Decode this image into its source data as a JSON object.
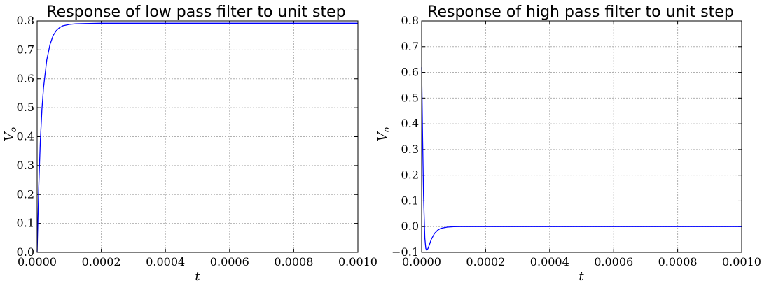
{
  "chart_data": [
    {
      "type": "line",
      "title": "Response of low pass filter to unit step",
      "xlabel": "t",
      "ylabel": "V_o",
      "xlim": [
        0,
        0.001
      ],
      "ylim": [
        0,
        0.8
      ],
      "xticks": [
        "0.0000",
        "0.0002",
        "0.0004",
        "0.0006",
        "0.0008",
        "0.0010"
      ],
      "yticks": [
        "0.0",
        "0.1",
        "0.2",
        "0.3",
        "0.4",
        "0.5",
        "0.6",
        "0.7",
        "0.8"
      ],
      "grid": true,
      "color": "#0000ff",
      "series": [
        {
          "x": [
            0,
            5e-06,
            1e-05,
            1.5e-05,
            2e-05,
            3e-05,
            4e-05,
            5e-05,
            6e-05,
            7e-05,
            8e-05,
            0.0001,
            0.00012,
            0.00015,
            0.0002,
            0.0003,
            0.0005,
            0.0007,
            0.001
          ],
          "y": [
            0,
            0.225,
            0.385,
            0.495,
            0.57,
            0.665,
            0.718,
            0.75,
            0.767,
            0.777,
            0.783,
            0.788,
            0.79,
            0.791,
            0.792,
            0.792,
            0.792,
            0.792,
            0.792
          ]
        }
      ]
    },
    {
      "type": "line",
      "title": "Response of high pass filter to unit step",
      "xlabel": "t",
      "ylabel": "V_o",
      "xlim": [
        0,
        0.001
      ],
      "ylim": [
        -0.1,
        0.8
      ],
      "xticks": [
        "0.0000",
        "0.0002",
        "0.0004",
        "0.0006",
        "0.0008",
        "0.0010"
      ],
      "yticks": [
        "−0.1",
        "0.0",
        "0.1",
        "0.2",
        "0.3",
        "0.4",
        "0.5",
        "0.6",
        "0.7",
        "0.8"
      ],
      "grid": true,
      "color": "#0000ff",
      "series": [
        {
          "x": [
            0,
            3e-06,
            6e-06,
            1e-05,
            1.3e-05,
            1.6e-05,
            2e-05,
            2.5e-05,
            3e-05,
            4e-05,
            5e-05,
            6e-05,
            8e-05,
            0.0001,
            0.00012,
            0.00015,
            0.0002,
            0.0005,
            0.001
          ],
          "y": [
            0.62,
            0.35,
            0.12,
            -0.045,
            -0.085,
            -0.092,
            -0.085,
            -0.068,
            -0.05,
            -0.027,
            -0.014,
            -0.007,
            -0.002,
            -0.0005,
            0,
            0,
            0,
            0,
            0
          ]
        }
      ]
    }
  ]
}
